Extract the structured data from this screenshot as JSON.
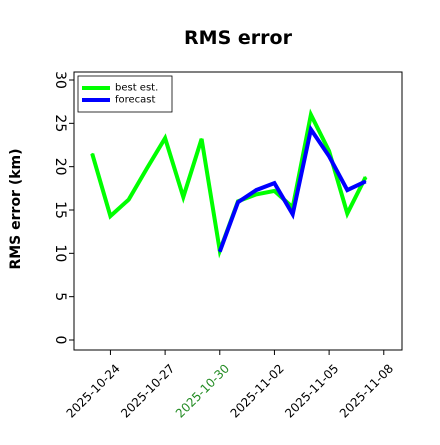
{
  "chart_data": {
    "type": "line",
    "title": "RMS error",
    "xlabel": "",
    "ylabel": "RMS error (km)",
    "ylim": [
      0,
      30
    ],
    "xlim": [
      "2025-10-22",
      "2025-11-09"
    ],
    "yticks": [
      0,
      5,
      10,
      15,
      20,
      25,
      30
    ],
    "xticks": [
      {
        "date": "2025-10-24",
        "label": "2025-10-24",
        "color": "#000000"
      },
      {
        "date": "2025-10-27",
        "label": "2025-10-27",
        "color": "#000000"
      },
      {
        "date": "2025-10-30",
        "label": "2025-10-30",
        "color": "#228b22"
      },
      {
        "date": "2025-11-02",
        "label": "2025-11-02",
        "color": "#000000"
      },
      {
        "date": "2025-11-05",
        "label": "2025-11-05",
        "color": "#000000"
      },
      {
        "date": "2025-11-08",
        "label": "2025-11-08",
        "color": "#000000"
      }
    ],
    "grid": false,
    "legend": "top-left",
    "series": [
      {
        "name": "best est.",
        "color": "#00ff00",
        "x": [
          "2025-10-23",
          "2025-10-24",
          "2025-10-25",
          "2025-10-26",
          "2025-10-27",
          "2025-10-28",
          "2025-10-29",
          "2025-10-30",
          "2025-10-31",
          "2025-11-01",
          "2025-11-02",
          "2025-11-03",
          "2025-11-04",
          "2025-11-05",
          "2025-11-06",
          "2025-11-07"
        ],
        "values": [
          21.5,
          14.3,
          16.2,
          19.8,
          23.3,
          16.5,
          23.2,
          10.3,
          16.0,
          16.8,
          17.2,
          15.3,
          26.0,
          21.8,
          14.6,
          18.8
        ]
      },
      {
        "name": "forecast",
        "color": "#0000ff",
        "x": [
          "2025-10-30",
          "2025-10-31",
          "2025-11-01",
          "2025-11-02",
          "2025-11-03",
          "2025-11-04",
          "2025-11-05",
          "2025-11-06",
          "2025-11-07"
        ],
        "values": [
          10.2,
          15.9,
          17.3,
          18.1,
          14.5,
          24.3,
          21.2,
          17.3,
          18.3
        ]
      }
    ]
  }
}
